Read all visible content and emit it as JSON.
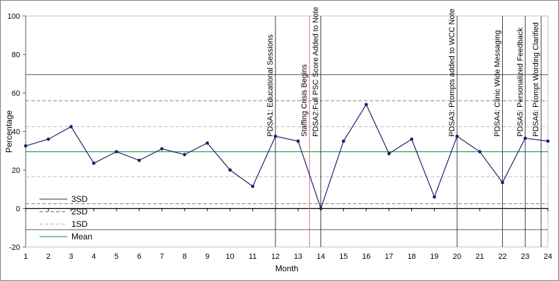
{
  "chart_data": {
    "type": "line",
    "xlabel": "Month",
    "ylabel": "Percentage",
    "x": [
      1,
      2,
      3,
      4,
      5,
      6,
      7,
      8,
      9,
      10,
      11,
      12,
      13,
      14,
      15,
      16,
      17,
      18,
      19,
      20,
      21,
      22,
      23,
      24
    ],
    "xlim": [
      1,
      24
    ],
    "ylim": [
      -20,
      100
    ],
    "yticks": [
      -20,
      0,
      20,
      40,
      60,
      80,
      100
    ],
    "grid": false,
    "series": [
      {
        "name": "",
        "color": "#1f1f6b",
        "values": [
          32.5,
          36,
          42.5,
          23.5,
          29.5,
          25,
          31,
          28,
          34,
          20,
          11.5,
          37.5,
          35,
          0,
          35,
          54,
          28.5,
          36,
          6,
          37.5,
          29.5,
          13.5,
          36.5,
          35
        ]
      }
    ],
    "reference_lines": [
      {
        "name": "3SD",
        "style": "solid",
        "color": "#595959",
        "values": [
          69.5,
          -11
        ]
      },
      {
        "name": "2SD",
        "style": "dashed",
        "color": "#7f7f7f",
        "values": [
          56,
          2.5
        ]
      },
      {
        "name": "1SD",
        "style": "dashed",
        "color": "#bfbfbf",
        "values": [
          42.5,
          16.5
        ]
      },
      {
        "name": "Mean",
        "style": "solid",
        "color": "#2e9e5b",
        "values": [
          29.5
        ]
      }
    ],
    "legend": {
      "placement": "bottom-left",
      "entries": [
        {
          "label": "3SD",
          "style": "solid",
          "color": "#595959"
        },
        {
          "label": "2SD",
          "style": "dashed",
          "color": "#7f7f7f"
        },
        {
          "label": "1SD",
          "style": "dashed",
          "color": "#bfbfbf"
        },
        {
          "label": "Mean",
          "style": "solid",
          "color": "#2e9e5b"
        }
      ]
    },
    "annotations": [
      {
        "label": "PDSA1: Educational Sessions",
        "x": 12,
        "color": "#404040"
      },
      {
        "label": "Staffing Crisis Begins",
        "x": 13.5,
        "color": "#e07070"
      },
      {
        "label": "PDSA2:Full PSC Score Added to Note",
        "x": 14,
        "color": "#404040"
      },
      {
        "label": "PDSA3: Prompts added to WCC Note",
        "x": 20,
        "color": "#404040"
      },
      {
        "label": "PDSA4: Clinic Wide Messaging",
        "x": 22,
        "color": "#404040"
      },
      {
        "label": "PDSA5: Personalized Feedback",
        "x": 23,
        "color": "#404040"
      },
      {
        "label": "PDSA6: Prompt Wording Clarified",
        "x": 23.7,
        "color": "#404040"
      }
    ]
  }
}
